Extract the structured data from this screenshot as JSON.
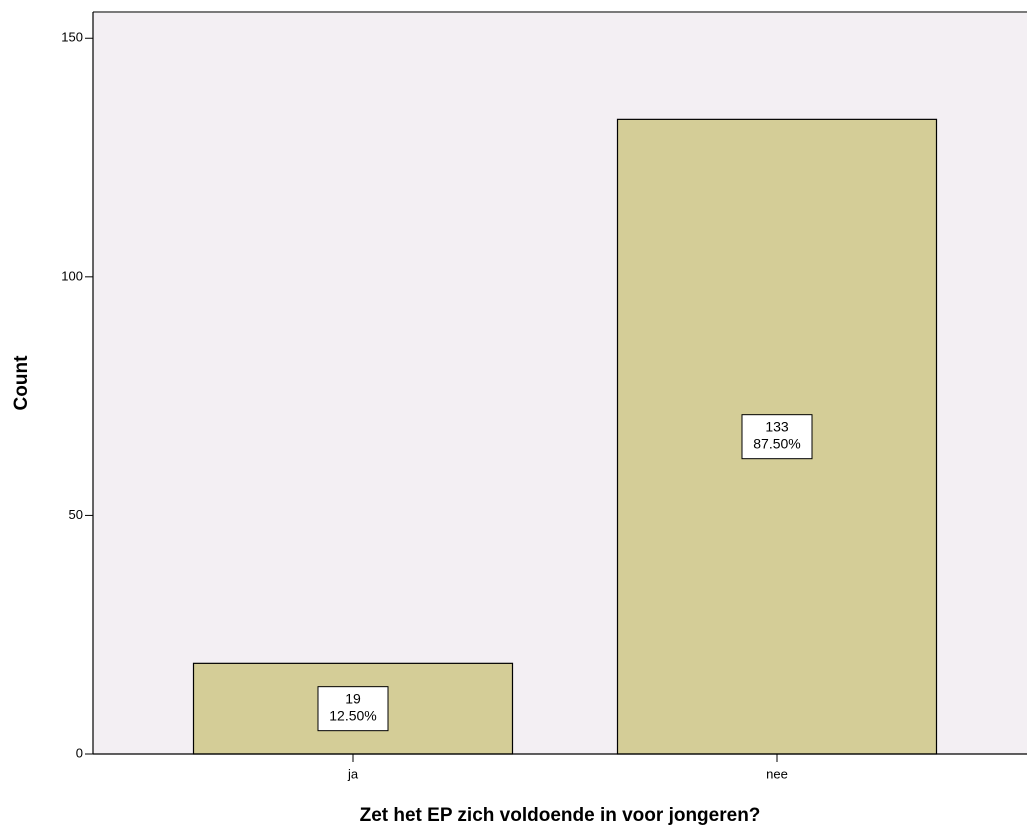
{
  "chart_data": {
    "type": "bar",
    "x_label": "Zet het EP zich voldoende in voor jongeren?",
    "y_label": "Count",
    "categories": [
      "ja",
      "nee"
    ],
    "values": [
      19,
      133
    ],
    "percentages": [
      12.5,
      87.5
    ],
    "percentage_labels": [
      "12.50%",
      "87.50%"
    ],
    "color": "#d4cd97",
    "ylim": [
      0,
      155.5
    ],
    "yticks": [
      0,
      50,
      100,
      150
    ],
    "grid": false
  }
}
